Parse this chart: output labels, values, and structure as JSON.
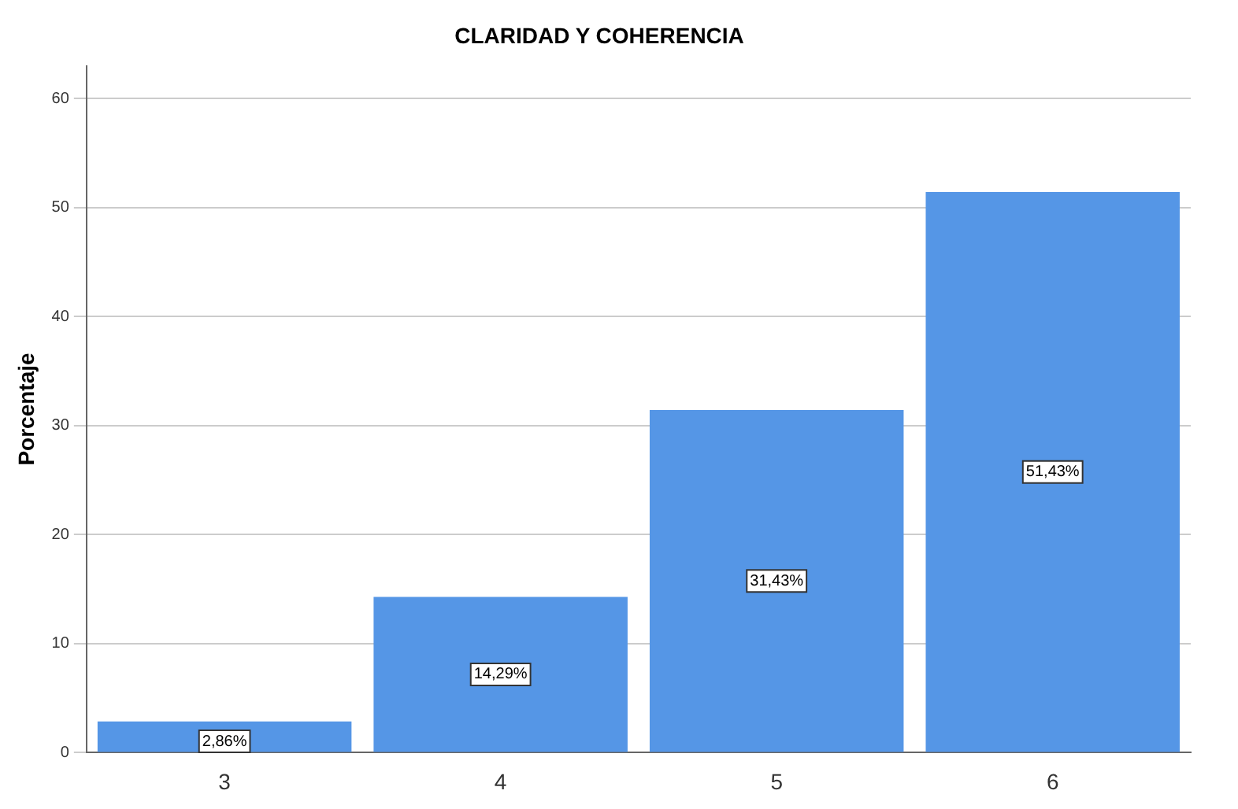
{
  "chart_data": {
    "type": "bar",
    "title": "CLARIDAD Y COHERENCIA",
    "ylabel": "Porcentaje",
    "categories": [
      "3",
      "4",
      "5",
      "6"
    ],
    "values": [
      2.86,
      14.29,
      31.43,
      51.43
    ],
    "value_labels": [
      "2,86%",
      "14,29%",
      "31,43%",
      "51,43%"
    ],
    "color": "#5596e6",
    "ylim": [
      0,
      63
    ],
    "yticks": [
      0,
      10,
      20,
      30,
      40,
      50,
      60
    ],
    "grid": "y",
    "legend": false
  }
}
